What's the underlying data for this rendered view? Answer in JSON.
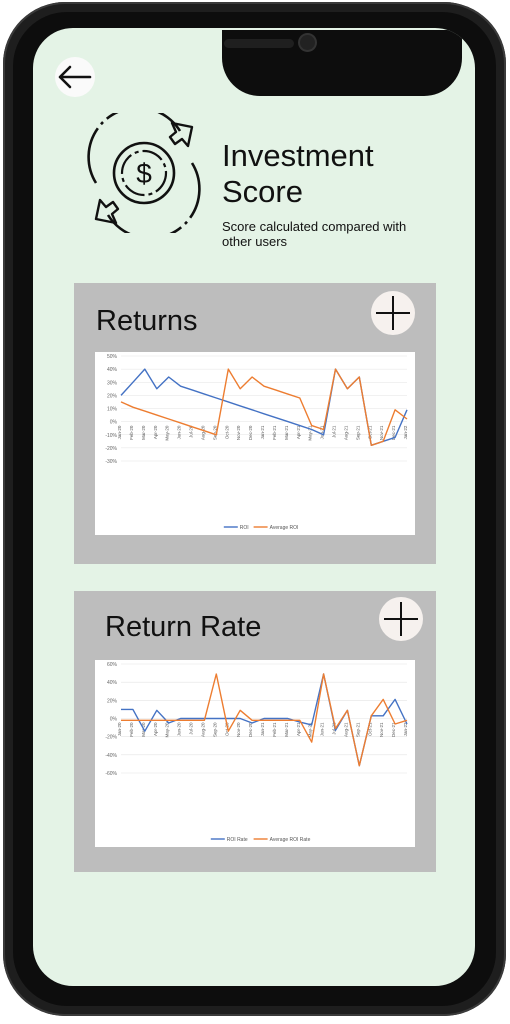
{
  "header": {
    "back_icon": "arrow-left-icon",
    "logo_icon": "dollar-exchange-cycle-icon",
    "title": "Investment Score",
    "subtitle": "Score calculated compared with other users"
  },
  "cards": [
    {
      "title": "Returns",
      "add_icon": "plus-icon"
    },
    {
      "title": "Return Rate",
      "add_icon": "plus-icon"
    }
  ],
  "chart_data": [
    {
      "type": "line",
      "title": "",
      "xlabel": "",
      "ylabel": "",
      "ylim": [
        -30,
        50
      ],
      "yticks": [
        "50%",
        "40%",
        "30%",
        "20%",
        "10%",
        "0%",
        "-10%",
        "-20%",
        "-30%"
      ],
      "categories": [
        "Jan-20",
        "Feb-20",
        "Mar-20",
        "Apr-20",
        "May-20",
        "Jun-20",
        "Jul-20",
        "Aug-20",
        "Sep-20",
        "Oct-20",
        "Nov-20",
        "Dec-20",
        "Jan-21",
        "Feb-21",
        "Mar-21",
        "Apr-21",
        "May-21",
        "Jun-21",
        "Jul-21",
        "Aug-21",
        "Sep-21",
        "Oct-21",
        "Nov-21",
        "Dec-21",
        "Jan-22"
      ],
      "series": [
        {
          "name": "ROI",
          "color": "#4472c4",
          "values": [
            20,
            30,
            40,
            25,
            34,
            27,
            24,
            21,
            18,
            15,
            12,
            9,
            6,
            3,
            0,
            -3,
            -6,
            -10,
            40,
            25,
            34,
            -18,
            -15,
            -12,
            9
          ]
        },
        {
          "name": "Average ROI",
          "color": "#ed7d31",
          "values": [
            15,
            11,
            8,
            5,
            2,
            -1,
            -4,
            -7,
            -10,
            40,
            25,
            34,
            27,
            24,
            21,
            18,
            -3,
            -6,
            40,
            25,
            34,
            -18,
            -15,
            9,
            2
          ]
        }
      ],
      "legend_position": "bottom",
      "grid": true
    },
    {
      "type": "line",
      "title": "",
      "xlabel": "",
      "ylabel": "",
      "ylim": [
        -60,
        60
      ],
      "yticks": [
        "60%",
        "40%",
        "20%",
        "0%",
        "-20%",
        "-40%",
        "-60%"
      ],
      "categories": [
        "Jan-20",
        "Feb-20",
        "Mar-20",
        "Apr-20",
        "May-20",
        "Jun-20",
        "Jul-20",
        "Aug-20",
        "Sep-20",
        "Oct-20",
        "Nov-20",
        "Dec-20",
        "Jan-21",
        "Feb-21",
        "Mar-21",
        "Apr-21",
        "May-21",
        "Jun-21",
        "Jul-21",
        "Aug-21",
        "Sep-21",
        "Oct-21",
        "Nov-21",
        "Dec-21",
        "Jan-22"
      ],
      "series": [
        {
          "name": "ROI Rate",
          "color": "#4472c4",
          "values": [
            10,
            10,
            -14,
            9,
            -5,
            0,
            0,
            0,
            0,
            0,
            0,
            -5,
            0,
            0,
            0,
            -4,
            -7,
            49,
            -13,
            9,
            -52,
            3,
            3,
            21,
            -6
          ]
        },
        {
          "name": "Average ROI Rate",
          "color": "#ed7d31",
          "values": [
            -2,
            -2,
            -2,
            -2,
            -2,
            -2,
            -2,
            -2,
            49,
            -14,
            9,
            -2,
            -2,
            -2,
            -2,
            -2,
            -26,
            49,
            -11,
            9,
            -52,
            3,
            21,
            -6,
            -2
          ]
        }
      ],
      "legend_position": "bottom",
      "grid": true
    }
  ]
}
